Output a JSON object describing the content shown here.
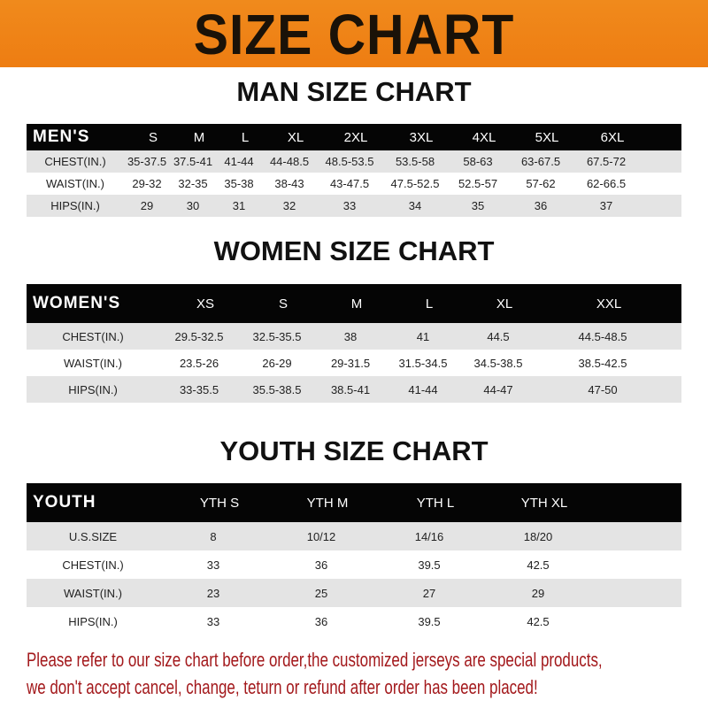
{
  "title": "SIZE CHART",
  "colors": {
    "banner": "#ef8318",
    "header_row": "#050505",
    "note": "#a3191c"
  },
  "men": {
    "title": "MAN SIZE CHART",
    "headers": [
      "MEN'S",
      "S",
      "M",
      "L",
      "XL",
      "2XL",
      "3XL",
      "4XL",
      "5XL",
      "6XL"
    ],
    "rows": [
      [
        "CHEST(IN.)",
        "35-37.5",
        "37.5-41",
        "41-44",
        "44-48.5",
        "48.5-53.5",
        "53.5-58",
        "58-63",
        "63-67.5",
        "67.5-72"
      ],
      [
        "WAIST(IN.)",
        "29-32",
        "32-35",
        "35-38",
        "38-43",
        "43-47.5",
        "47.5-52.5",
        "52.5-57",
        "57-62",
        "62-66.5"
      ],
      [
        "HIPS(IN.)",
        "29",
        "30",
        "31",
        "32",
        "33",
        "34",
        "35",
        "36",
        "37"
      ]
    ]
  },
  "women": {
    "title": "WOMEN SIZE CHART",
    "headers": [
      "WOMEN'S",
      "XS",
      "S",
      "M",
      "L",
      "XL",
      "XXL"
    ],
    "rows": [
      [
        "CHEST(IN.)",
        "29.5-32.5",
        "32.5-35.5",
        "38",
        "41",
        "44.5",
        "44.5-48.5"
      ],
      [
        "WAIST(IN.)",
        "23.5-26",
        "26-29",
        "29-31.5",
        "31.5-34.5",
        "34.5-38.5",
        "38.5-42.5"
      ],
      [
        "HIPS(IN.)",
        "33-35.5",
        "35.5-38.5",
        "38.5-41",
        "41-44",
        "44-47",
        "47-50"
      ]
    ]
  },
  "youth": {
    "title": "YOUTH SIZE CHART",
    "headers": [
      "YOUTH",
      "YTH S",
      "YTH M",
      "YTH L",
      "YTH XL"
    ],
    "rows": [
      [
        "U.S.SIZE",
        "8",
        "10/12",
        "14/16",
        "18/20"
      ],
      [
        "CHEST(IN.)",
        "33",
        "36",
        "39.5",
        "42.5"
      ],
      [
        "WAIST(IN.)",
        "23",
        "25",
        "27",
        "29"
      ],
      [
        "HIPS(IN.)",
        "33",
        "36",
        "39.5",
        "42.5"
      ]
    ]
  },
  "note": {
    "line1": "Please refer to our size chart before order,the customized jerseys are special products,",
    "line2": "we don't accept cancel, change, teturn or refund after order has been placed!"
  }
}
